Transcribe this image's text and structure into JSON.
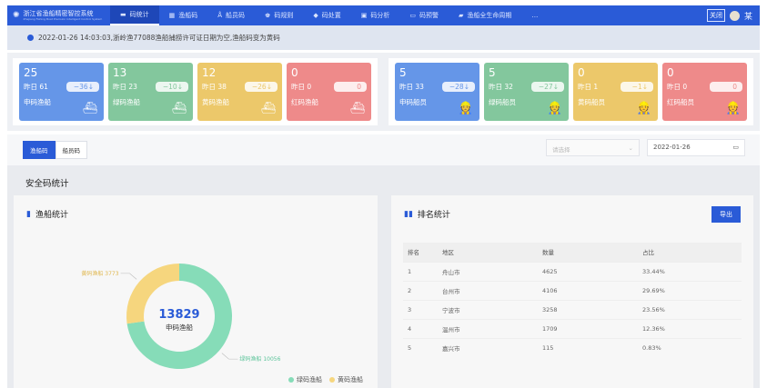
{
  "nav": {
    "title": "浙江省渔船精密智控系统",
    "subtitle": "Zhejiang Fishing Boat Precision Intelligent Control System",
    "items": [
      {
        "label": "码统计",
        "icon": "chart-icon",
        "active": true
      },
      {
        "label": "渔船码",
        "icon": "grid-icon"
      },
      {
        "label": "船员码",
        "icon": "person-icon"
      },
      {
        "label": "码规则",
        "icon": "crown-icon"
      },
      {
        "label": "码处置",
        "icon": "pin-icon"
      },
      {
        "label": "码分析",
        "icon": "analysis-icon"
      },
      {
        "label": "码预警",
        "icon": "link-icon"
      },
      {
        "label": "渔船全生命周期",
        "icon": "folder-icon"
      },
      {
        "label": "…",
        "icon": ""
      }
    ],
    "close_label": "关闭",
    "user": "某"
  },
  "notice": "2022-01-26 14:03:03,浙岭渔77088渔船捕捞许可证日期为空,渔船码变为黄码",
  "colors": {
    "blue": "#6596e8",
    "green": "#83c79d",
    "yellow": "#ecc86a",
    "red": "#ee8a8a",
    "accent": "#2a5bd7",
    "donut_green": "#86dcb8",
    "donut_yellow": "#f6d67e"
  },
  "boat_cards": [
    {
      "value": "25",
      "yesterday": "昨日 61",
      "delta": "−36↓",
      "label": "申码渔船",
      "color": "blue"
    },
    {
      "value": "13",
      "yesterday": "昨日 23",
      "delta": "−10↓",
      "label": "绿码渔船",
      "color": "green"
    },
    {
      "value": "12",
      "yesterday": "昨日 38",
      "delta": "−26↓",
      "label": "黄码渔船",
      "color": "yellow"
    },
    {
      "value": "0",
      "yesterday": "昨日 0",
      "delta": "0",
      "label": "红码渔船",
      "color": "red"
    }
  ],
  "crew_cards": [
    {
      "value": "5",
      "yesterday": "昨日 33",
      "delta": "−28↓",
      "label": "申码船员",
      "color": "blue"
    },
    {
      "value": "5",
      "yesterday": "昨日 32",
      "delta": "−27↓",
      "label": "绿码船员",
      "color": "green"
    },
    {
      "value": "0",
      "yesterday": "昨日 1",
      "delta": "−1↓",
      "label": "黄码船员",
      "color": "yellow"
    },
    {
      "value": "0",
      "yesterday": "昨日 0",
      "delta": "0",
      "label": "红码船员",
      "color": "red"
    }
  ],
  "filter": {
    "tabs": [
      "渔船码",
      "船员码"
    ],
    "select_placeholder": "请选择",
    "date": "2022-01-26"
  },
  "section_title": "安全码统计",
  "boat_stats": {
    "title": "渔船统计",
    "total": "13829",
    "total_label": "申码渔船",
    "chart_data": {
      "type": "pie",
      "donut": true,
      "slices": [
        {
          "name": "绿码渔船",
          "value": 10056,
          "color": "#86dcb8"
        },
        {
          "name": "黄码渔船",
          "value": 3773,
          "color": "#f6d67e"
        }
      ],
      "labels": [
        "绿码渔船 10056",
        "黄码渔船 3773"
      ],
      "legend": [
        "绿码渔船",
        "黄码渔船"
      ],
      "legend_position": "bottom-right"
    }
  },
  "ranking": {
    "title": "排名统计",
    "export_label": "导出",
    "columns": [
      "排名",
      "地区",
      "数量",
      "占比"
    ],
    "rows": [
      [
        "1",
        "舟山市",
        "4625",
        "33.44%"
      ],
      [
        "2",
        "台州市",
        "4106",
        "29.69%"
      ],
      [
        "3",
        "宁波市",
        "3258",
        "23.56%"
      ],
      [
        "4",
        "温州市",
        "1709",
        "12.36%"
      ],
      [
        "5",
        "嘉兴市",
        "115",
        "0.83%"
      ]
    ]
  }
}
